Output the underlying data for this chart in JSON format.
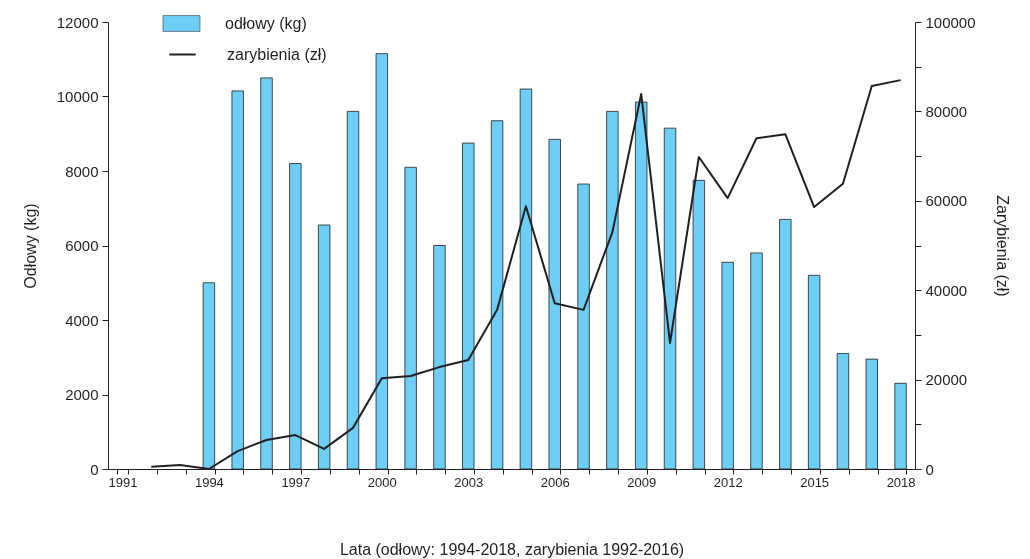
{
  "chart_data": {
    "type": "bar",
    "xlabel": "Lata (odłowy: 1994-2018, zarybienia 1992-2016)",
    "ylabel": "Odłowy (kg)",
    "y2label": "Zarybienia (zł)",
    "categories": [
      "1991",
      null,
      null,
      "1994",
      null,
      null,
      "1997",
      null,
      null,
      "2000",
      null,
      null,
      "2003",
      null,
      null,
      "2006",
      null,
      null,
      "2009",
      null,
      null,
      "2012",
      null,
      null,
      "2015",
      null,
      null,
      "2018"
    ],
    "series": [
      {
        "name": "odłowy (kg)",
        "color": "#6dcff6",
        "values": [
          null,
          null,
          null,
          5000,
          10150,
          10500,
          8200,
          6550,
          9600,
          11150,
          8100,
          6000,
          8750,
          9350,
          10200,
          8850,
          7650,
          9600,
          9850,
          9150,
          7750,
          5550,
          5800,
          6700,
          5200,
          3100,
          2950,
          2300
        ]
      },
      {
        "name": "zarybienia (zł)",
        "type": "line",
        "axis": "y2",
        "color": "#231f20",
        "values": [
          null,
          500,
          900,
          0,
          4000,
          6500,
          7600,
          4500,
          9200,
          20300,
          20800,
          22800,
          24400,
          35600,
          58800,
          37100,
          35600,
          53000,
          83900,
          28200,
          69800,
          60600,
          74000,
          74900,
          58600,
          63800,
          85700,
          87000
        ]
      }
    ],
    "ylim": [
      0,
      12000
    ],
    "yticks": [
      0,
      2000,
      4000,
      6000,
      8000,
      10000,
      12000
    ],
    "y2lim": [
      0,
      100000
    ],
    "y2ticks": [
      0,
      {
        "value": 10000,
        "label": null
      },
      20000,
      {
        "value": 30000,
        "label": null
      },
      40000,
      {
        "value": 50000,
        "label": null
      },
      60000,
      {
        "value": 70000,
        "label": null
      },
      80000,
      {
        "value": 90000,
        "label": null
      },
      100000
    ],
    "grid": false,
    "legend": "top left",
    "line_style": "solid",
    "marker": "none"
  }
}
